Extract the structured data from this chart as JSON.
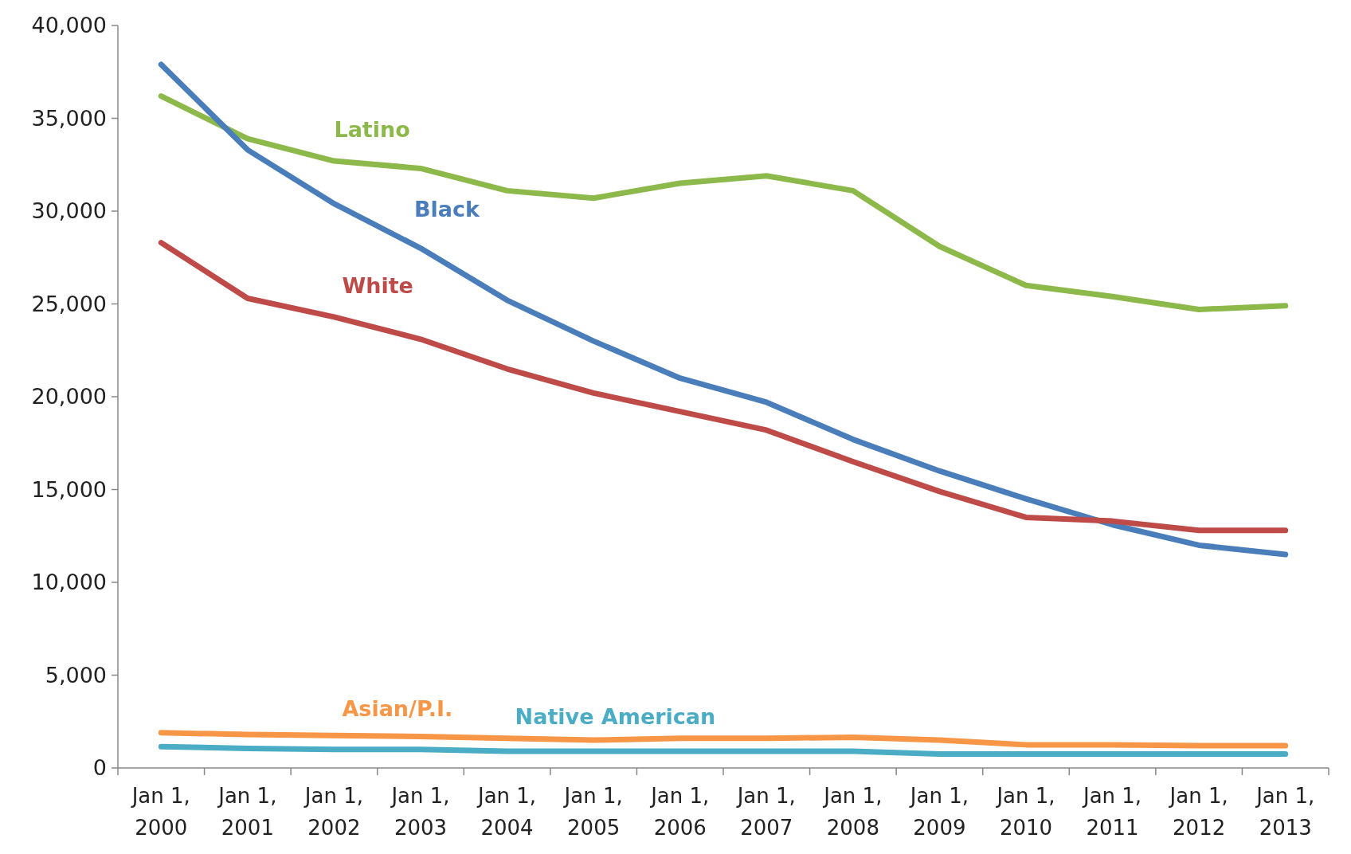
{
  "chart_data": {
    "type": "line",
    "categories": [
      "Jan 1, 2000",
      "Jan 1, 2001",
      "Jan 1, 2002",
      "Jan 1, 2003",
      "Jan 1, 2004",
      "Jan 1, 2005",
      "Jan 1, 2006",
      "Jan 1, 2007",
      "Jan 1, 2008",
      "Jan 1, 2009",
      "Jan 1, 2010",
      "Jan 1, 2011",
      "Jan 1, 2012",
      "Jan 1, 2013"
    ],
    "series": [
      {
        "name": "Latino",
        "color": "#8db84a",
        "values": [
          36200,
          33900,
          32700,
          32300,
          31100,
          30700,
          31500,
          31900,
          31100,
          28100,
          26000,
          25400,
          24700,
          24900
        ]
      },
      {
        "name": "Black",
        "color": "#4a7ebb",
        "values": [
          37900,
          33300,
          30400,
          28000,
          25200,
          23000,
          21000,
          19700,
          17700,
          16000,
          14500,
          13100,
          12000,
          11500
        ]
      },
      {
        "name": "White",
        "color": "#be4b48",
        "values": [
          28300,
          25300,
          24300,
          23100,
          21500,
          20200,
          19200,
          18200,
          16500,
          14900,
          13500,
          13300,
          12800,
          12800
        ]
      },
      {
        "name": "Asian/P.I.",
        "color": "#f79646",
        "values": [
          1900,
          1800,
          1750,
          1700,
          1600,
          1500,
          1600,
          1600,
          1650,
          1500,
          1250,
          1250,
          1200,
          1200
        ]
      },
      {
        "name": "Native American",
        "color": "#4bacc6",
        "values": [
          1150,
          1050,
          1000,
          1000,
          900,
          900,
          900,
          900,
          900,
          750,
          750,
          750,
          750,
          750
        ]
      }
    ],
    "ylim": [
      0,
      40000
    ],
    "yticks": [
      {
        "value": 0,
        "label": "0"
      },
      {
        "value": 5000,
        "label": "5,000"
      },
      {
        "value": 10000,
        "label": "10,000"
      },
      {
        "value": 15000,
        "label": "15,000"
      },
      {
        "value": 20000,
        "label": "20,000"
      },
      {
        "value": 25000,
        "label": "25,000"
      },
      {
        "value": 30000,
        "label": "30,000"
      },
      {
        "value": 35000,
        "label": "35,000"
      },
      {
        "value": 40000,
        "label": "40,000"
      }
    ],
    "grid": false,
    "legend": false,
    "marker": "none",
    "line_style": "solid"
  }
}
